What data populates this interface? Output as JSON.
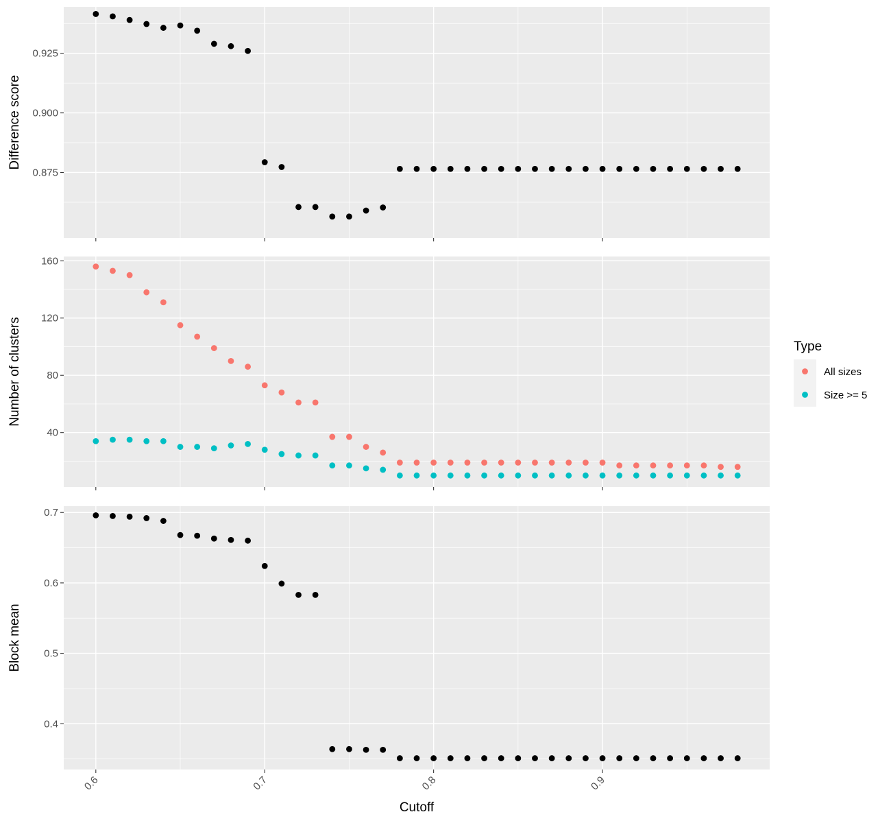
{
  "chart_data": {
    "type": "scatter",
    "xlabel": "Cutoff",
    "x_ticks": [
      0.6,
      0.7,
      0.8,
      0.9
    ],
    "x_tick_labels": [
      "0.6",
      "0.7",
      "0.8",
      "0.9"
    ],
    "xlim": [
      0.581,
      0.999
    ],
    "x": [
      0.6,
      0.61,
      0.62,
      0.63,
      0.64,
      0.65,
      0.66,
      0.67,
      0.68,
      0.69,
      0.7,
      0.71,
      0.72,
      0.73,
      0.74,
      0.75,
      0.76,
      0.77,
      0.78,
      0.79,
      0.8,
      0.81,
      0.82,
      0.83,
      0.84,
      0.85,
      0.86,
      0.87,
      0.88,
      0.89,
      0.9,
      0.91,
      0.92,
      0.93,
      0.94,
      0.95,
      0.96,
      0.97,
      0.98
    ],
    "grid": true,
    "legend_placement": "right",
    "legend": {
      "title": "Type",
      "items": [
        {
          "label": "All sizes",
          "color": "#F8766D"
        },
        {
          "label": "Size >= 5",
          "color": "#00BFC4"
        }
      ]
    },
    "panels": [
      {
        "ylabel": "Difference score",
        "ylim": [
          0.8475,
          0.9445
        ],
        "y_ticks": [
          0.875,
          0.9,
          0.925
        ],
        "y_tick_labels": [
          "0.875",
          "0.900",
          "0.925"
        ],
        "series": [
          {
            "color": "#000000",
            "values": [
              0.9415,
              0.9405,
              0.939,
              0.9373,
              0.9357,
              0.9367,
              0.9345,
              0.929,
              0.928,
              0.926,
              0.8793,
              0.8773,
              0.8605,
              0.8605,
              0.8565,
              0.8565,
              0.859,
              0.8603,
              0.8765,
              0.8765,
              0.8765,
              0.8765,
              0.8765,
              0.8765,
              0.8765,
              0.8765,
              0.8765,
              0.8765,
              0.8765,
              0.8765,
              0.8765,
              0.8765,
              0.8765,
              0.8765,
              0.8765,
              0.8765,
              0.8765,
              0.8765,
              0.8765
            ]
          }
        ]
      },
      {
        "ylabel": "Number of clusters",
        "ylim": [
          2,
          163
        ],
        "y_ticks": [
          40,
          80,
          120,
          160
        ],
        "y_tick_labels": [
          "40",
          "80",
          "120",
          "160"
        ],
        "series": [
          {
            "name": "All sizes",
            "color": "#F8766D",
            "values": [
              156,
              153,
              150,
              138,
              131,
              115,
              107,
              99,
              90,
              86,
              73,
              68,
              61,
              61,
              37,
              37,
              30,
              26,
              19,
              19,
              19,
              19,
              19,
              19,
              19,
              19,
              19,
              19,
              19,
              19,
              19,
              17,
              17,
              17,
              17,
              17,
              17,
              16,
              16
            ]
          },
          {
            "name": "Size >= 5",
            "color": "#00BFC4",
            "values": [
              34,
              35,
              35,
              34,
              34,
              30,
              30,
              29,
              31,
              32,
              28,
              25,
              24,
              24,
              17,
              17,
              15,
              14,
              10,
              10,
              10,
              10,
              10,
              10,
              10,
              10,
              10,
              10,
              10,
              10,
              10,
              10,
              10,
              10,
              10,
              10,
              10,
              10,
              10
            ]
          }
        ]
      },
      {
        "ylabel": "Block mean",
        "ylim": [
          0.335,
          0.709
        ],
        "y_ticks": [
          0.4,
          0.5,
          0.6,
          0.7
        ],
        "y_tick_labels": [
          "0.4",
          "0.5",
          "0.6",
          "0.7"
        ],
        "series": [
          {
            "color": "#000000",
            "values": [
              0.696,
              0.695,
              0.694,
              0.692,
              0.688,
              0.668,
              0.667,
              0.663,
              0.661,
              0.66,
              0.624,
              0.599,
              0.583,
              0.583,
              0.364,
              0.364,
              0.363,
              0.363,
              0.351,
              0.351,
              0.351,
              0.351,
              0.351,
              0.351,
              0.351,
              0.351,
              0.351,
              0.351,
              0.351,
              0.351,
              0.351,
              0.351,
              0.351,
              0.351,
              0.351,
              0.351,
              0.351,
              0.351,
              0.351
            ]
          }
        ]
      }
    ]
  }
}
